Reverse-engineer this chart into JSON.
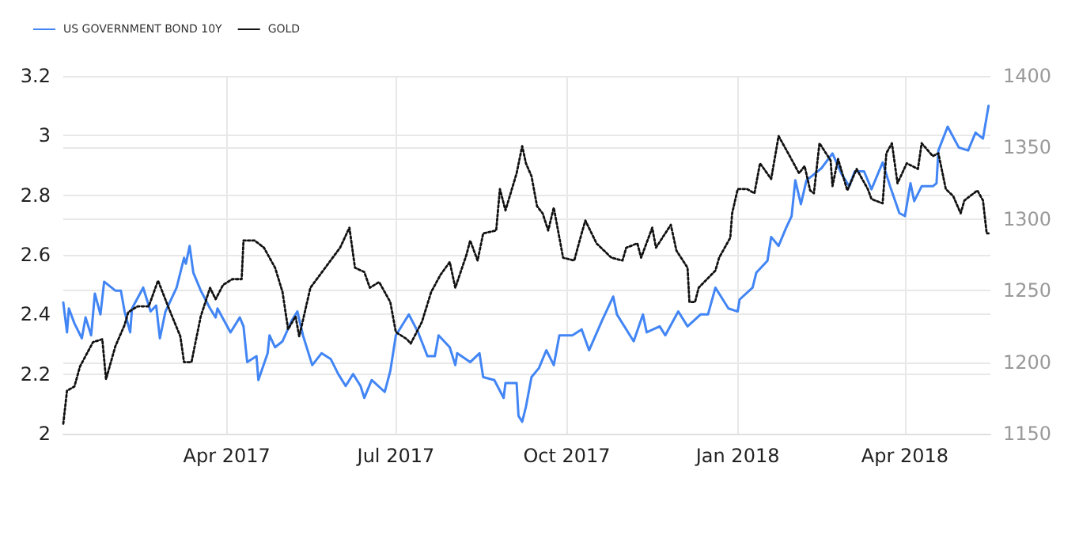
{
  "chart_data": {
    "type": "line",
    "legend": "top left",
    "grid": true,
    "marker": "none",
    "xlim": [
      "2017-01-03",
      "2018-05-17"
    ],
    "xticks": [
      {
        "value": "2017-04-01",
        "label": "Apr 2017"
      },
      {
        "value": "2017-07-01",
        "label": "Jul 2017"
      },
      {
        "value": "2017-10-01",
        "label": "Oct 2017"
      },
      {
        "value": "2018-01-01",
        "label": "Jan 2018"
      },
      {
        "value": "2018-04-01",
        "label": "Apr 2018"
      }
    ],
    "ylim": [
      2,
      3.2
    ],
    "yticks": [
      2,
      2.2,
      2.4,
      2.6,
      2.8,
      3,
      3.2
    ],
    "y2lim": [
      1150,
      1400
    ],
    "y2ticks": [
      1150,
      1200,
      1250,
      1300,
      1350,
      1400
    ],
    "series": [
      {
        "name": "US GOVERNMENT BOND 10Y",
        "color": "#4285f4",
        "line_style": "solid",
        "x": [
          "2017-01-03",
          "2017-01-05",
          "2017-01-06",
          "2017-01-09",
          "2017-01-13",
          "2017-01-15",
          "2017-01-18",
          "2017-01-20",
          "2017-01-23",
          "2017-01-25",
          "2017-01-31",
          "2017-02-03",
          "2017-02-05",
          "2017-02-08",
          "2017-02-09",
          "2017-02-15",
          "2017-02-19",
          "2017-02-22",
          "2017-02-24",
          "2017-02-27",
          "2017-03-05",
          "2017-03-09",
          "2017-03-10",
          "2017-03-12",
          "2017-03-14",
          "2017-03-18",
          "2017-03-23",
          "2017-03-26",
          "2017-03-27",
          "2017-04-03",
          "2017-04-08",
          "2017-04-10",
          "2017-04-12",
          "2017-04-17",
          "2017-04-18",
          "2017-04-23",
          "2017-04-24",
          "2017-04-27",
          "2017-05-01",
          "2017-05-06",
          "2017-05-09",
          "2017-05-12",
          "2017-05-17",
          "2017-05-22",
          "2017-05-27",
          "2017-05-31",
          "2017-06-04",
          "2017-06-08",
          "2017-06-12",
          "2017-06-14",
          "2017-06-18",
          "2017-06-25",
          "2017-06-28",
          "2017-07-01",
          "2017-07-08",
          "2017-07-13",
          "2017-07-18",
          "2017-07-22",
          "2017-07-24",
          "2017-07-30",
          "2017-08-02",
          "2017-08-03",
          "2017-08-10",
          "2017-08-15",
          "2017-08-17",
          "2017-08-23",
          "2017-08-28",
          "2017-08-29",
          "2017-09-04",
          "2017-09-05",
          "2017-09-07",
          "2017-09-09",
          "2017-09-12",
          "2017-09-16",
          "2017-09-20",
          "2017-09-24",
          "2017-09-27",
          "2017-10-04",
          "2017-10-09",
          "2017-10-13",
          "2017-10-20",
          "2017-10-26",
          "2017-10-28",
          "2017-11-06",
          "2017-11-11",
          "2017-11-13",
          "2017-11-20",
          "2017-11-23",
          "2017-11-30",
          "2017-12-05",
          "2017-12-12",
          "2017-12-16",
          "2017-12-20",
          "2017-12-27",
          "2018-01-01",
          "2018-01-02",
          "2018-01-09",
          "2018-01-11",
          "2018-01-17",
          "2018-01-19",
          "2018-01-23",
          "2018-01-27",
          "2018-01-30",
          "2018-02-01",
          "2018-02-04",
          "2018-02-07",
          "2018-02-11",
          "2018-02-15",
          "2018-02-21",
          "2018-02-26",
          "2018-03-02",
          "2018-03-05",
          "2018-03-10",
          "2018-03-14",
          "2018-03-20",
          "2018-03-24",
          "2018-03-29",
          "2018-04-01",
          "2018-04-04",
          "2018-04-06",
          "2018-04-10",
          "2018-04-16",
          "2018-04-18",
          "2018-04-19",
          "2018-04-24",
          "2018-04-30",
          "2018-05-05",
          "2018-05-09",
          "2018-05-13",
          "2018-05-16"
        ],
        "values": [
          2.44,
          2.34,
          2.42,
          2.37,
          2.32,
          2.39,
          2.33,
          2.47,
          2.4,
          2.51,
          2.48,
          2.48,
          2.41,
          2.34,
          2.42,
          2.49,
          2.41,
          2.43,
          2.32,
          2.41,
          2.49,
          2.59,
          2.57,
          2.63,
          2.54,
          2.48,
          2.42,
          2.39,
          2.42,
          2.34,
          2.39,
          2.36,
          2.24,
          2.26,
          2.18,
          2.27,
          2.33,
          2.29,
          2.31,
          2.38,
          2.41,
          2.33,
          2.23,
          2.27,
          2.25,
          2.2,
          2.16,
          2.2,
          2.16,
          2.12,
          2.18,
          2.14,
          2.21,
          2.33,
          2.4,
          2.34,
          2.26,
          2.26,
          2.33,
          2.29,
          2.23,
          2.27,
          2.24,
          2.27,
          2.19,
          2.18,
          2.12,
          2.17,
          2.17,
          2.06,
          2.04,
          2.09,
          2.19,
          2.22,
          2.28,
          2.23,
          2.33,
          2.33,
          2.35,
          2.28,
          2.38,
          2.46,
          2.4,
          2.31,
          2.4,
          2.34,
          2.36,
          2.33,
          2.41,
          2.36,
          2.4,
          2.4,
          2.49,
          2.42,
          2.41,
          2.45,
          2.49,
          2.54,
          2.58,
          2.66,
          2.63,
          2.69,
          2.73,
          2.85,
          2.77,
          2.85,
          2.87,
          2.89,
          2.94,
          2.87,
          2.83,
          2.88,
          2.88,
          2.82,
          2.91,
          2.83,
          2.74,
          2.73,
          2.84,
          2.78,
          2.83,
          2.83,
          2.84,
          2.95,
          3.03,
          2.96,
          2.95,
          3.01,
          2.99,
          3.1
        ]
      },
      {
        "name": "GOLD",
        "color": "#111111",
        "line_style": "dotted",
        "axis": "y2",
        "x": [
          "2017-01-03",
          "2017-01-05",
          "2017-01-09",
          "2017-01-12",
          "2017-01-19",
          "2017-01-24",
          "2017-01-26",
          "2017-01-31",
          "2017-02-05",
          "2017-02-07",
          "2017-02-12",
          "2017-02-18",
          "2017-02-23",
          "2017-03-01",
          "2017-03-07",
          "2017-03-09",
          "2017-03-13",
          "2017-03-18",
          "2017-03-23",
          "2017-03-26",
          "2017-03-30",
          "2017-04-04",
          "2017-04-09",
          "2017-04-10",
          "2017-04-16",
          "2017-04-21",
          "2017-04-27",
          "2017-05-01",
          "2017-05-04",
          "2017-05-08",
          "2017-05-10",
          "2017-05-16",
          "2017-05-24",
          "2017-06-01",
          "2017-06-06",
          "2017-06-09",
          "2017-06-14",
          "2017-06-17",
          "2017-06-22",
          "2017-06-28",
          "2017-07-01",
          "2017-07-07",
          "2017-07-09",
          "2017-07-15",
          "2017-07-20",
          "2017-07-25",
          "2017-07-30",
          "2017-08-02",
          "2017-08-08",
          "2017-08-10",
          "2017-08-14",
          "2017-08-17",
          "2017-08-24",
          "2017-08-26",
          "2017-08-29",
          "2017-09-04",
          "2017-09-07",
          "2017-09-09",
          "2017-09-12",
          "2017-09-15",
          "2017-09-18",
          "2017-09-21",
          "2017-09-24",
          "2017-09-27",
          "2017-09-29",
          "2017-10-05",
          "2017-10-09",
          "2017-10-11",
          "2017-10-17",
          "2017-10-25",
          "2017-10-31",
          "2017-11-02",
          "2017-11-08",
          "2017-11-10",
          "2017-11-16",
          "2017-11-18",
          "2017-11-26",
          "2017-11-29",
          "2017-12-05",
          "2017-12-06",
          "2017-12-09",
          "2017-12-11",
          "2017-12-20",
          "2017-12-22",
          "2017-12-28",
          "2017-12-29",
          "2018-01-01",
          "2018-01-06",
          "2018-01-10",
          "2018-01-13",
          "2018-01-19",
          "2018-01-23",
          "2018-01-29",
          "2018-02-03",
          "2018-02-06",
          "2018-02-09",
          "2018-02-11",
          "2018-02-14",
          "2018-02-20",
          "2018-02-21",
          "2018-02-24",
          "2018-03-01",
          "2018-03-06",
          "2018-03-12",
          "2018-03-14",
          "2018-03-20",
          "2018-03-22",
          "2018-03-25",
          "2018-03-28",
          "2018-04-02",
          "2018-04-08",
          "2018-04-10",
          "2018-04-16",
          "2018-04-19",
          "2018-04-23",
          "2018-04-27",
          "2018-05-01",
          "2018-05-03",
          "2018-05-10",
          "2018-05-13",
          "2018-05-15",
          "2018-05-16"
        ],
        "values": [
          1157,
          1180,
          1183,
          1197,
          1214,
          1216,
          1188,
          1211,
          1226,
          1235,
          1239,
          1239,
          1257,
          1237,
          1218,
          1200,
          1200,
          1232,
          1252,
          1244,
          1254,
          1258,
          1258,
          1285,
          1285,
          1280,
          1266,
          1249,
          1223,
          1232,
          1218,
          1252,
          1266,
          1280,
          1294,
          1266,
          1263,
          1252,
          1256,
          1242,
          1221,
          1216,
          1213,
          1228,
          1249,
          1261,
          1270,
          1252,
          1275,
          1285,
          1271,
          1290,
          1292,
          1321,
          1306,
          1332,
          1351,
          1339,
          1330,
          1309,
          1304,
          1292,
          1308,
          1287,
          1273,
          1271,
          1290,
          1299,
          1283,
          1273,
          1271,
          1280,
          1283,
          1273,
          1294,
          1280,
          1296,
          1278,
          1266,
          1242,
          1242,
          1252,
          1264,
          1273,
          1287,
          1304,
          1321,
          1321,
          1318,
          1339,
          1328,
          1358,
          1344,
          1332,
          1337,
          1320,
          1318,
          1353,
          1341,
          1323,
          1342,
          1320,
          1335,
          1321,
          1314,
          1311,
          1346,
          1353,
          1325,
          1339,
          1335,
          1353,
          1344,
          1346,
          1321,
          1316,
          1304,
          1313,
          1320,
          1313,
          1290,
          1290
        ]
      }
    ]
  }
}
